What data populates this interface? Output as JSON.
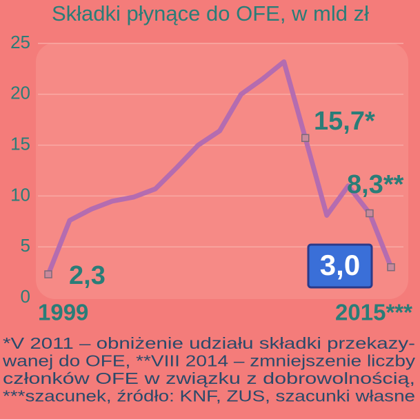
{
  "chart_data": {
    "type": "line",
    "title": "Składki płynące do OFE, w mld zł",
    "categories": [
      "1999",
      null,
      null,
      null,
      null,
      null,
      null,
      null,
      null,
      null,
      null,
      null,
      null,
      null,
      null,
      null,
      "2015***"
    ],
    "series": [
      {
        "color": "#b46cb0",
        "values": [
          2.3,
          7.6,
          8.7,
          9.5,
          9.9,
          10.7,
          12.8,
          15.0,
          16.4,
          20.0,
          21.5,
          23.2,
          15.7,
          8.1,
          11.0,
          8.3,
          3.0
        ],
        "value_labels": [
          "2,3",
          null,
          null,
          null,
          null,
          null,
          null,
          null,
          null,
          null,
          null,
          null,
          "15,7*",
          null,
          null,
          "8,3**",
          "3,0"
        ]
      }
    ],
    "ylim": [
      0,
      25
    ],
    "yticks": [
      0,
      5,
      10,
      15,
      20,
      25
    ],
    "grid": true,
    "footnote": [
      "*V 2011 – obniżenie udziału składki przekazy-",
      "wanej do OFE, **VIII 2014 – zmniejszenie liczby",
      "członków OFE w związku z dobrowolnością,",
      "***szacunek, źródło: KNF, ZUS, szacunki własne"
    ]
  }
}
